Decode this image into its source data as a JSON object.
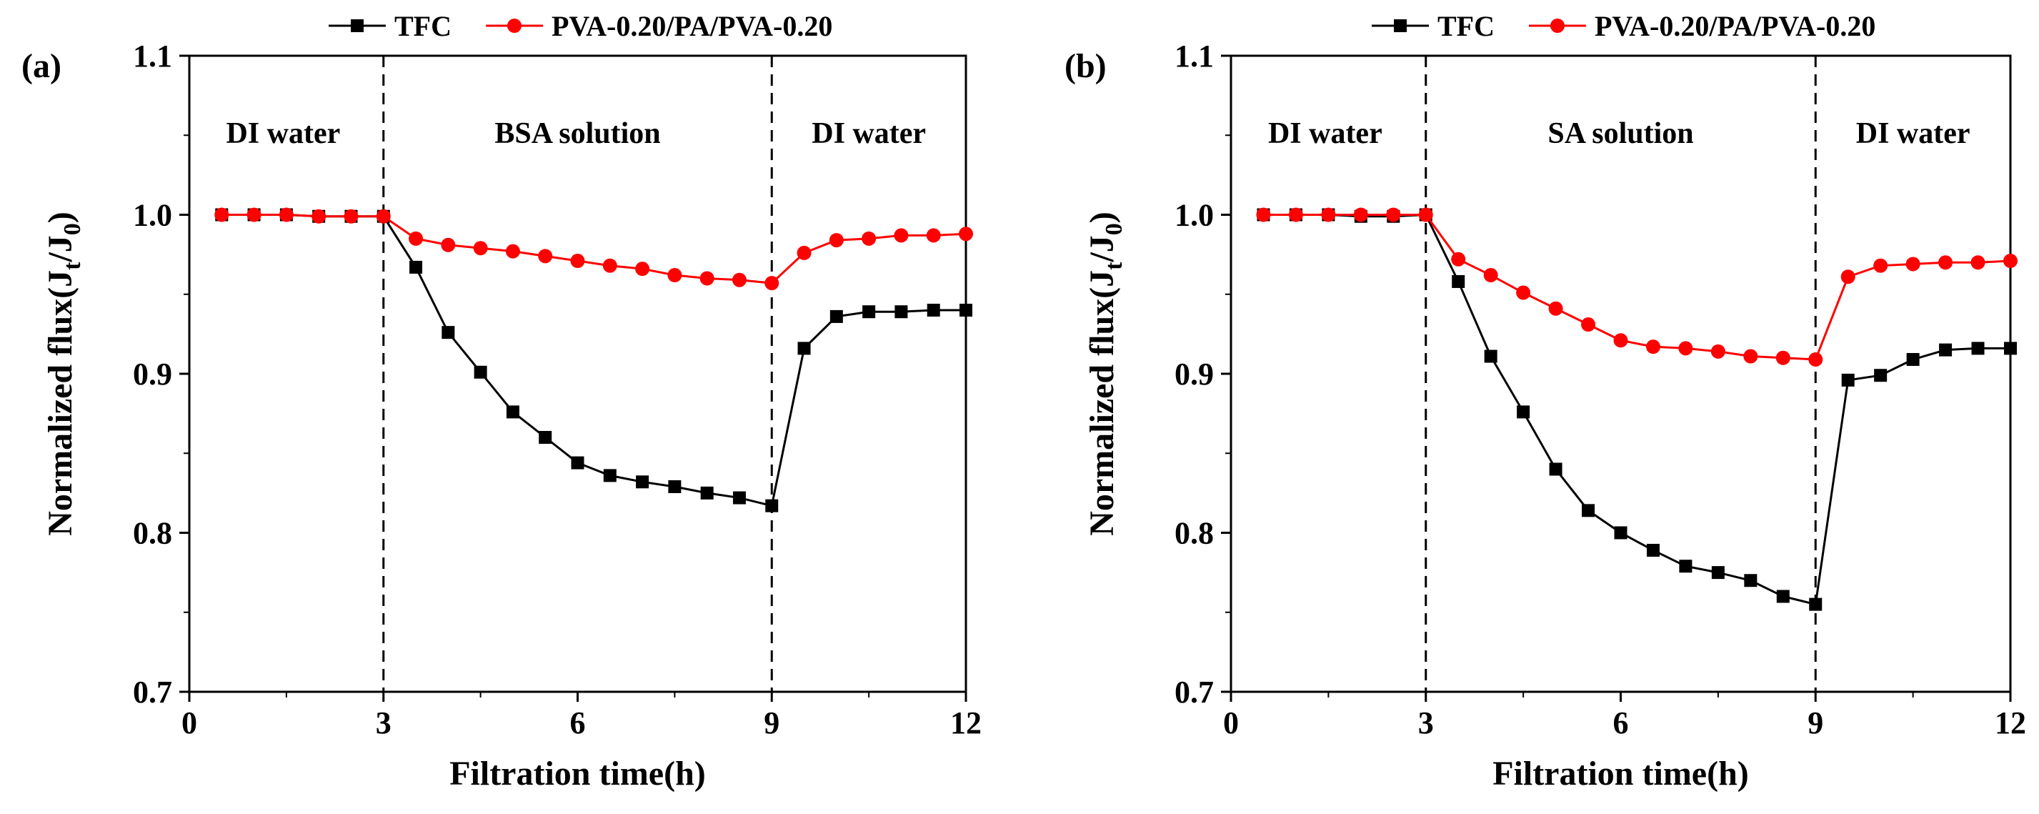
{
  "chart_data": [
    {
      "type": "line",
      "panel_label": "(a)",
      "xlabel": "Filtration time(h)",
      "ylabel_main": "Normalized flux(J",
      "ylabel_sub1": "t",
      "ylabel_mid": "/J",
      "ylabel_sub2": "0",
      "ylabel_end": ")",
      "xlim": [
        0,
        12
      ],
      "ylim": [
        0.7,
        1.1
      ],
      "x_ticks": [
        0,
        3,
        6,
        9,
        12
      ],
      "x_tick_labels": [
        "0",
        "3",
        "6",
        "9",
        "12"
      ],
      "y_ticks": [
        0.7,
        0.8,
        0.9,
        1.0,
        1.1
      ],
      "y_tick_labels": [
        "0.7",
        "0.8",
        "0.9",
        "1.0",
        "1.1"
      ],
      "dividers": [
        3,
        9
      ],
      "regions": [
        {
          "label": "DI water",
          "x_center": 1.45
        },
        {
          "label": "BSA solution",
          "x_center": 6.0
        },
        {
          "label": "DI water",
          "x_center": 10.5
        }
      ],
      "series": [
        {
          "name": "TFC",
          "color": "#000000",
          "marker": "square",
          "x": [
            0.5,
            1,
            1.5,
            2,
            2.5,
            3,
            3.5,
            4,
            4.5,
            5,
            5.5,
            6,
            6.5,
            7,
            7.5,
            8,
            8.5,
            9,
            9.5,
            10,
            10.5,
            11,
            11.5,
            12
          ],
          "y": [
            1.0,
            1.0,
            1.0,
            0.999,
            0.999,
            0.999,
            0.967,
            0.926,
            0.901,
            0.876,
            0.86,
            0.844,
            0.836,
            0.832,
            0.829,
            0.825,
            0.822,
            0.817,
            0.916,
            0.936,
            0.939,
            0.939,
            0.94,
            0.94
          ]
        },
        {
          "name": "PVA-0.20/PA/PVA-0.20",
          "color": "#ff0000",
          "marker": "circle",
          "x": [
            0.5,
            1,
            1.5,
            2,
            2.5,
            3,
            3.5,
            4,
            4.5,
            5,
            5.5,
            6,
            6.5,
            7,
            7.5,
            8,
            8.5,
            9,
            9.5,
            10,
            10.5,
            11,
            11.5,
            12
          ],
          "y": [
            1.0,
            1.0,
            1.0,
            0.999,
            0.999,
            0.999,
            0.985,
            0.981,
            0.979,
            0.977,
            0.974,
            0.971,
            0.968,
            0.966,
            0.962,
            0.96,
            0.959,
            0.957,
            0.976,
            0.984,
            0.985,
            0.987,
            0.987,
            0.988
          ]
        }
      ]
    },
    {
      "type": "line",
      "panel_label": "(b)",
      "xlabel": "Filtration time(h)",
      "ylabel_main": "Normalized flux(J",
      "ylabel_sub1": "t",
      "ylabel_mid": "/J",
      "ylabel_sub2": "0",
      "ylabel_end": ")",
      "xlim": [
        0,
        12
      ],
      "ylim": [
        0.7,
        1.1
      ],
      "x_ticks": [
        0,
        3,
        6,
        9,
        12
      ],
      "x_tick_labels": [
        "0",
        "3",
        "6",
        "9",
        "12"
      ],
      "y_ticks": [
        0.7,
        0.8,
        0.9,
        1.0,
        1.1
      ],
      "y_tick_labels": [
        "0.7",
        "0.8",
        "0.9",
        "1.0",
        "1.1"
      ],
      "dividers": [
        3,
        9
      ],
      "regions": [
        {
          "label": "DI water",
          "x_center": 1.45
        },
        {
          "label": "SA solution",
          "x_center": 6.0
        },
        {
          "label": "DI water",
          "x_center": 10.5
        }
      ],
      "series": [
        {
          "name": "TFC",
          "color": "#000000",
          "marker": "square",
          "x": [
            0.5,
            1,
            1.5,
            2,
            2.5,
            3,
            3.5,
            4,
            4.5,
            5,
            5.5,
            6,
            6.5,
            7,
            7.5,
            8,
            8.5,
            9,
            9.5,
            10,
            10.5,
            11,
            11.5,
            12
          ],
          "y": [
            1.0,
            1.0,
            1.0,
            0.999,
            0.999,
            1.0,
            0.958,
            0.911,
            0.876,
            0.84,
            0.814,
            0.8,
            0.789,
            0.779,
            0.775,
            0.77,
            0.76,
            0.755,
            0.896,
            0.899,
            0.909,
            0.915,
            0.916,
            0.916
          ]
        },
        {
          "name": "PVA-0.20/PA/PVA-0.20",
          "color": "#ff0000",
          "marker": "circle",
          "x": [
            0.5,
            1,
            1.5,
            2,
            2.5,
            3,
            3.5,
            4,
            4.5,
            5,
            5.5,
            6,
            6.5,
            7,
            7.5,
            8,
            8.5,
            9,
            9.5,
            10,
            10.5,
            11,
            11.5,
            12
          ],
          "y": [
            1.0,
            1.0,
            1.0,
            1.0,
            1.0,
            1.0,
            0.972,
            0.962,
            0.951,
            0.941,
            0.931,
            0.921,
            0.917,
            0.916,
            0.914,
            0.911,
            0.91,
            0.909,
            0.961,
            0.968,
            0.969,
            0.97,
            0.97,
            0.971
          ]
        }
      ]
    }
  ]
}
